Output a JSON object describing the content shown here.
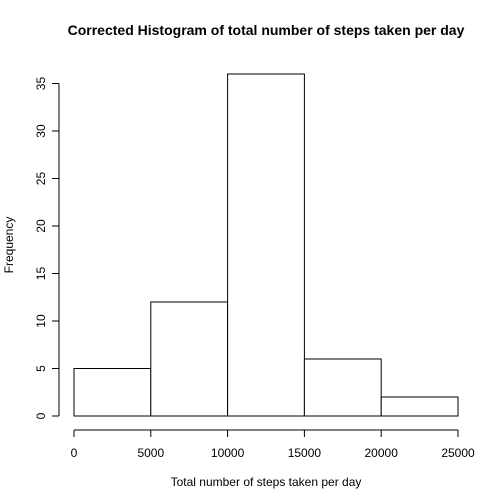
{
  "chart_data": {
    "type": "bar",
    "title": "Corrected Histogram of total number of steps taken per day",
    "xlabel": "Total number of steps taken per day",
    "ylabel": "Frequency",
    "bins": [
      {
        "from": 0,
        "to": 5000,
        "value": 5
      },
      {
        "from": 5000,
        "to": 10000,
        "value": 12
      },
      {
        "from": 10000,
        "to": 15000,
        "value": 36
      },
      {
        "from": 15000,
        "to": 20000,
        "value": 6
      },
      {
        "from": 20000,
        "to": 25000,
        "value": 2
      }
    ],
    "xlim": [
      0,
      25000
    ],
    "ylim": [
      0,
      36
    ],
    "xticks": [
      0,
      5000,
      10000,
      15000,
      20000,
      25000
    ],
    "yticks": [
      0,
      5,
      10,
      15,
      20,
      25,
      30,
      35
    ],
    "grid": false,
    "bar_fill": "#ffffff",
    "bar_stroke": "#000000"
  }
}
